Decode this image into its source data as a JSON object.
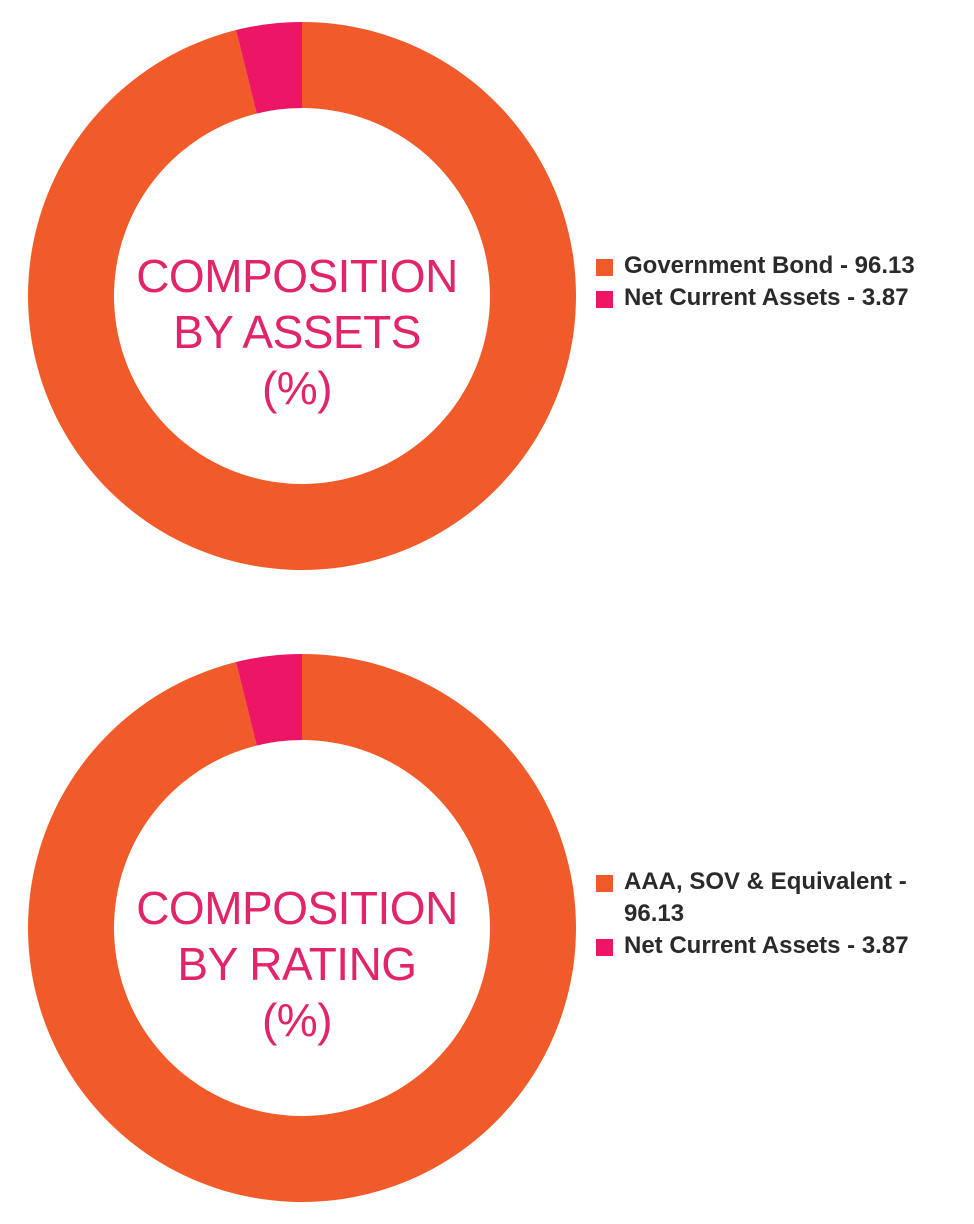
{
  "chart_data": [
    {
      "type": "pie",
      "title": "COMPOSITION BY ASSETS (%)",
      "center_title_lines": [
        "COMPOSITION",
        "BY ASSETS",
        "(%)"
      ],
      "slices": [
        {
          "label": "Government Bond - 96.13",
          "value": 96.13,
          "color": "#f15a29"
        },
        {
          "label": "Net Current Assets - 3.87",
          "value": 3.87,
          "color": "#ec1566"
        }
      ],
      "legend_position": "right"
    },
    {
      "type": "pie",
      "title": "COMPOSITION BY RATING (%)",
      "center_title_lines": [
        "COMPOSITION",
        "BY RATING",
        "(%)"
      ],
      "slices": [
        {
          "label": "AAA, SOV & Equivalent - 96.13",
          "value": 96.13,
          "color": "#f15a29"
        },
        {
          "label": "Net Current Assets - 3.87",
          "value": 3.87,
          "color": "#ec1566"
        }
      ],
      "legend_position": "right"
    }
  ],
  "colors": {
    "title_text": "#e2246b",
    "legend_text": "#2a2a2a"
  }
}
